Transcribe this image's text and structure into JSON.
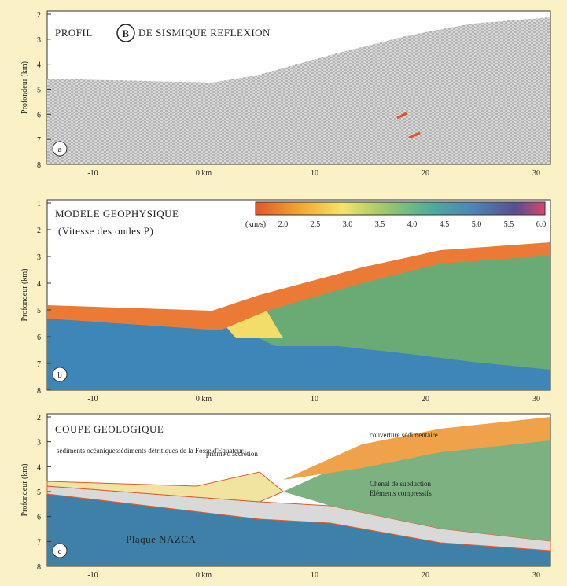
{
  "panels": [
    {
      "title": "PROFIL",
      "badge": "B",
      "title_rest": "DE SISMIQUE REFLEXION",
      "letter": "a",
      "y_label": "Profondeur (km)",
      "y_ticks": [
        "2",
        "3",
        "4",
        "5",
        "6",
        "7",
        "8"
      ],
      "x_ticks": [
        "-10",
        "0 km",
        "10",
        "20",
        "30"
      ]
    },
    {
      "title": "MODELE GEOPHYSIQUE",
      "subtitle": "(Vitesse des ondes P)",
      "letter": "b",
      "y_label": "Profondeur (km)",
      "y_ticks": [
        "1",
        "2",
        "3",
        "4",
        "5",
        "6",
        "7",
        "8"
      ],
      "x_ticks": [
        "-10",
        "0 km",
        "10",
        "20",
        "30"
      ]
    },
    {
      "title": "COUPE GEOLOGIQUE",
      "letter": "c",
      "y_label": "Profondeur (km)",
      "y_ticks": [
        "2",
        "3",
        "4",
        "5",
        "6",
        "7",
        "8"
      ],
      "x_ticks": [
        "-10",
        "0 km",
        "10",
        "20",
        "30"
      ]
    }
  ],
  "color_scale": {
    "unit": "(km/s)",
    "ticks": [
      "2.0",
      "2.5",
      "3.0",
      "3.5",
      "4.0",
      "4.5",
      "5.0",
      "5.5",
      "6.0"
    ]
  },
  "annotations": [
    "sédiments océaniques",
    "sédiments détritiques de la Fosse d'Equateur",
    "prisme d'accrétion",
    "couverture sédimentaire",
    "Chenal de subduction",
    "Eléments compressifs",
    "Plaque NAZCA"
  ]
}
